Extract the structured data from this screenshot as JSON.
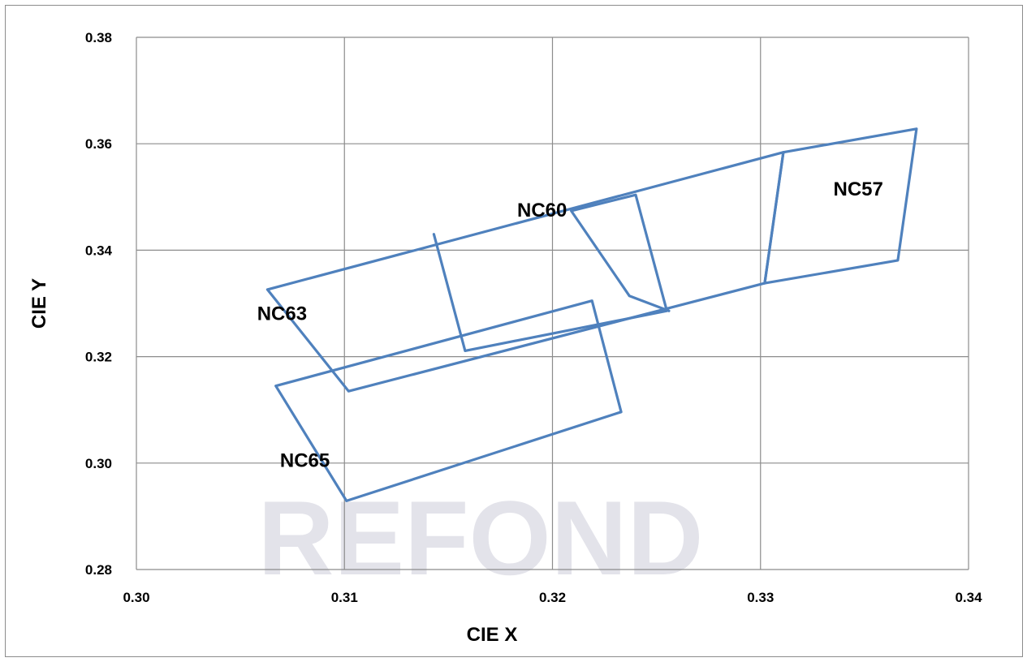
{
  "chart_data": {
    "type": "line",
    "title": "",
    "xlabel": "CIE  X",
    "ylabel": "CIE Y",
    "xlim": [
      0.3,
      0.34
    ],
    "ylim": [
      0.28,
      0.38
    ],
    "x_ticks": [
      "0.30",
      "0.31",
      "0.32",
      "0.33",
      "0.34"
    ],
    "y_ticks": [
      "0.28",
      "0.30",
      "0.32",
      "0.34",
      "0.36",
      "0.38"
    ],
    "grid": true,
    "legend": "none",
    "series_color": "#4f81bd",
    "series": [
      {
        "name": "NC57",
        "points": [
          [
            0.3302,
            0.3338
          ],
          [
            0.3311,
            0.3584
          ],
          [
            0.3375,
            0.3628
          ],
          [
            0.3366,
            0.3381
          ],
          [
            0.3302,
            0.3338
          ]
        ]
      },
      {
        "name": "NC60",
        "points": [
          [
            0.3143,
            0.343
          ],
          [
            0.3158,
            0.3211
          ],
          [
            0.3255,
            0.3286
          ],
          [
            0.324,
            0.3504
          ],
          [
            0.3209,
            0.3474
          ],
          [
            0.3237,
            0.3314
          ],
          [
            0.3256,
            0.3286
          ]
        ]
      },
      {
        "name": "NC63",
        "points": [
          [
            0.3063,
            0.3326
          ],
          [
            0.3102,
            0.3135
          ],
          [
            0.3302,
            0.3338
          ],
          [
            0.3311,
            0.3584
          ],
          [
            0.3063,
            0.3326
          ]
        ]
      },
      {
        "name": "NC65",
        "points": [
          [
            0.3067,
            0.3145
          ],
          [
            0.3101,
            0.2929
          ],
          [
            0.3233,
            0.3096
          ],
          [
            0.3219,
            0.3305
          ],
          [
            0.3067,
            0.3145
          ]
        ]
      }
    ],
    "annotations": [
      {
        "text": "NC57",
        "x": 0.3347,
        "y": 0.3515
      },
      {
        "text": "NC60",
        "x": 0.3195,
        "y": 0.3475
      },
      {
        "text": "NC63",
        "x": 0.307,
        "y": 0.3281
      },
      {
        "text": "NC65",
        "x": 0.3081,
        "y": 0.3005
      }
    ]
  },
  "watermark": {
    "text": "REFOND"
  }
}
